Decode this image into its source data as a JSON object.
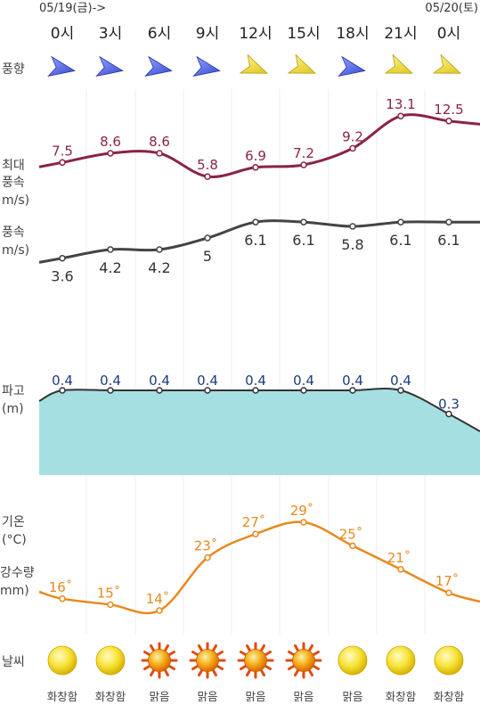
{
  "header": {
    "date_start": "05/19(금)->",
    "date_end": "05/20(토)"
  },
  "times": [
    "0시",
    "3시",
    "6시",
    "9시",
    "12시",
    "15시",
    "18시",
    "21시",
    "0시"
  ],
  "row_labels": {
    "wind_direction": "풍향",
    "max_wind": [
      "최대",
      "풍속",
      "m/s)"
    ],
    "wind": [
      "풍속",
      "m/s)"
    ],
    "wave": [
      "파고",
      "(m)"
    ],
    "temp": [
      "기온",
      "(°C)"
    ],
    "precip": [
      "강수량",
      "mm)"
    ],
    "weather": "날씨"
  },
  "colors": {
    "max_wind": "#8b2347",
    "wind": "#444444",
    "wave_line": "#333333",
    "wave_fill": "#a6dfe2",
    "wave_label": "#1f3c7a",
    "temp": "#e8891e",
    "grid": "#eeeeee",
    "arrow_blue": "#3a4fd6",
    "arrow_yellow": "#e6cf17"
  },
  "chart_data": [
    {
      "type": "line",
      "name": "max_wind",
      "x": [
        "0시",
        "3시",
        "6시",
        "9시",
        "12시",
        "15시",
        "18시",
        "21시",
        "0시"
      ],
      "values": [
        7.5,
        8.6,
        8.6,
        5.8,
        6.9,
        7.2,
        9.2,
        13.1,
        12.5
      ],
      "labels": [
        "7.5",
        "8.6",
        "8.6",
        "5.8",
        "6.9",
        "7.2",
        "9.2",
        "13.1",
        "12.5"
      ]
    },
    {
      "type": "line",
      "name": "wind",
      "x": [
        "0시",
        "3시",
        "6시",
        "9시",
        "12시",
        "15시",
        "18시",
        "21시",
        "0시"
      ],
      "values": [
        3.6,
        4.2,
        4.2,
        5,
        6.1,
        6.1,
        5.8,
        6.1,
        6.1
      ],
      "labels": [
        "3.6",
        "4.2",
        "4.2",
        "5",
        "6.1",
        "6.1",
        "5.8",
        "6.1",
        "6.1"
      ]
    },
    {
      "type": "area",
      "name": "wave",
      "x": [
        "0시",
        "3시",
        "6시",
        "9시",
        "12시",
        "15시",
        "18시",
        "21시",
        "0시"
      ],
      "values": [
        0.4,
        0.4,
        0.4,
        0.4,
        0.4,
        0.4,
        0.4,
        0.4,
        0.3
      ],
      "labels": [
        "0.4",
        "0.4",
        "0.4",
        "0.4",
        "0.4",
        "0.4",
        "0.4",
        "0.4",
        "0.3"
      ]
    },
    {
      "type": "line",
      "name": "temp",
      "x": [
        "0시",
        "3시",
        "6시",
        "9시",
        "12시",
        "15시",
        "18시",
        "21시",
        "0시"
      ],
      "values": [
        16,
        15,
        14,
        23,
        27,
        29,
        25,
        21,
        17
      ],
      "labels": [
        "16˚",
        "15˚",
        "14˚",
        "23˚",
        "27˚",
        "29˚",
        "25˚",
        "21˚",
        "17˚"
      ]
    }
  ],
  "wind_directions": [
    "blue",
    "blue",
    "blue",
    "blue",
    "yellow",
    "yellow",
    "blue",
    "yellow",
    "yellow"
  ],
  "weather": [
    {
      "icon": "sun-icon",
      "label": "화창함"
    },
    {
      "icon": "sun-icon",
      "label": "화창함"
    },
    {
      "icon": "hot-sun-icon",
      "label": "맑음"
    },
    {
      "icon": "hot-sun-icon",
      "label": "맑음"
    },
    {
      "icon": "hot-sun-icon",
      "label": "맑음"
    },
    {
      "icon": "hot-sun-icon",
      "label": "맑음"
    },
    {
      "icon": "sun-icon",
      "label": "맑음"
    },
    {
      "icon": "sun-icon",
      "label": "화창함"
    },
    {
      "icon": "sun-icon",
      "label": "화창함"
    }
  ]
}
